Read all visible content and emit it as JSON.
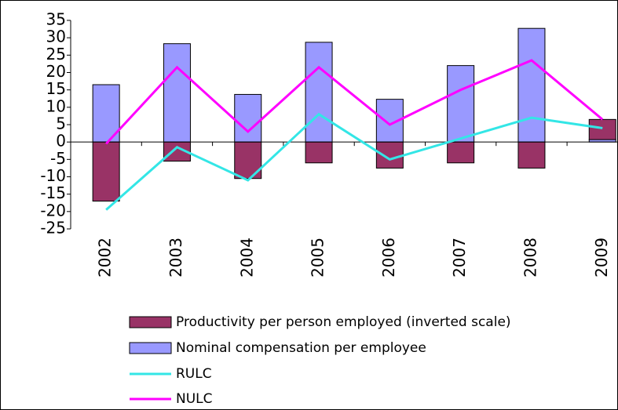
{
  "chart_data": {
    "type": "bar",
    "categories": [
      "2002",
      "2003",
      "2004",
      "2005",
      "2006",
      "2007",
      "2008",
      "2009"
    ],
    "series": [
      {
        "name": "Productivity per person employed (inverted scale)",
        "type": "bar",
        "color": "#993366",
        "values": [
          -17,
          -5.5,
          -10.5,
          -6,
          -7.5,
          -6,
          -7.5,
          5.8
        ]
      },
      {
        "name": "Nominal compensation per employee",
        "type": "bar",
        "color": "#9999ff",
        "values": [
          16.5,
          28.3,
          13.7,
          28.7,
          12.3,
          22,
          32.7,
          0.7
        ]
      },
      {
        "name": "RULC",
        "type": "line",
        "color": "#33e6e6",
        "values": [
          -19.5,
          -1.5,
          -11,
          8,
          -5,
          1,
          7,
          4
        ]
      },
      {
        "name": "NULC",
        "type": "line",
        "color": "#ff00ff",
        "values": [
          -0.5,
          21.5,
          3,
          21.5,
          5,
          15,
          23.5,
          6.5
        ]
      }
    ],
    "ylim": [
      -25,
      35
    ],
    "yticks": [
      -25,
      -20,
      -15,
      -10,
      -5,
      0,
      5,
      10,
      15,
      20,
      25,
      30,
      35
    ],
    "stacked": true
  }
}
